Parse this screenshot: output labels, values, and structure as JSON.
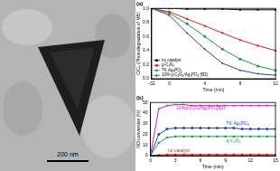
{
  "chart_data": [
    {
      "type": "line",
      "title": "(a)",
      "x_label": "Time (min)",
      "y_label": "C/C₀ (Photodegradation of MB)",
      "categories": [
        "-32",
        "0",
        null,
        "4",
        null,
        "8",
        null,
        "12"
      ],
      "series": [
        {
          "name": "no catalyst",
          "color": "#000000",
          "marker": "square",
          "values": [
            1,
            1,
            0.99,
            0.99,
            0.99,
            0.98,
            0.98,
            0.98
          ]
        },
        {
          "name": "g-C₃N₄",
          "color": "#e0201b",
          "marker": "square",
          "values": [
            1,
            0.95,
            0.85,
            0.75,
            0.65,
            0.55,
            0.47,
            0.4
          ]
        },
        {
          "name": "TK Ag₃PO₄",
          "color": "#1a9a3a",
          "marker": "circle",
          "values": [
            1,
            0.93,
            0.78,
            0.6,
            0.42,
            0.28,
            0.18,
            0.12
          ]
        },
        {
          "name": "10% g-C₃N₄/Ag₃PO₄ (B3)",
          "color": "#2a3fd0",
          "marker": "triangle",
          "values": [
            1,
            0.9,
            0.65,
            0.42,
            0.22,
            0.12,
            0.07,
            0.05
          ]
        }
      ],
      "ylim": [
        0,
        1
      ],
      "yticks": [
        {
          "value": 0,
          "label": "0.0"
        },
        0.2,
        0.4,
        0.6,
        0.8,
        {
          "value": 1,
          "label": "1.0"
        }
      ],
      "grid": false,
      "legend": "lower left"
    },
    {
      "type": "line",
      "title": "(b)",
      "x_label": "Time (min)",
      "y_label": "NO conversion (%)",
      "x": [
        0,
        1,
        2,
        3,
        4,
        5,
        6,
        7,
        8,
        9,
        10,
        11,
        12,
        13,
        14,
        15
      ],
      "series": [
        {
          "name": "10%g-C₃N₄/Ag₃PO₄(B3)",
          "color": "#c020c0",
          "marker": "triangle",
          "values": [
            0,
            44,
            47,
            48,
            48,
            47,
            47,
            47,
            47,
            47,
            47,
            47,
            47,
            47,
            47,
            47
          ]
        },
        {
          "name": "TK Ag₃PO₄",
          "color": "#2040d0",
          "marker": "circle",
          "values": [
            0,
            20,
            25,
            26,
            26,
            26,
            26,
            26,
            26,
            26,
            26,
            25,
            25,
            25,
            25,
            25
          ]
        },
        {
          "name": "g-C₃N₄",
          "color": "#20a040",
          "marker": "square",
          "values": [
            0,
            12,
            17,
            18,
            18,
            18,
            18,
            18,
            18,
            18,
            18,
            18,
            18,
            18,
            18,
            18
          ]
        },
        {
          "name": "no catalyst",
          "color": "#e02020",
          "marker": "square",
          "values": [
            0,
            0.5,
            1,
            1,
            1,
            1,
            1,
            1,
            1,
            1,
            1,
            1,
            1,
            1,
            1,
            1
          ]
        }
      ],
      "xlim": [
        0,
        15
      ],
      "xticks": [
        0,
        3,
        6,
        9,
        12,
        15
      ],
      "ylim": [
        0,
        50
      ],
      "yticks": [
        0,
        10,
        20,
        30,
        40,
        50
      ],
      "grid": false
    }
  ],
  "image": {
    "scale_bar": "200 nm"
  }
}
